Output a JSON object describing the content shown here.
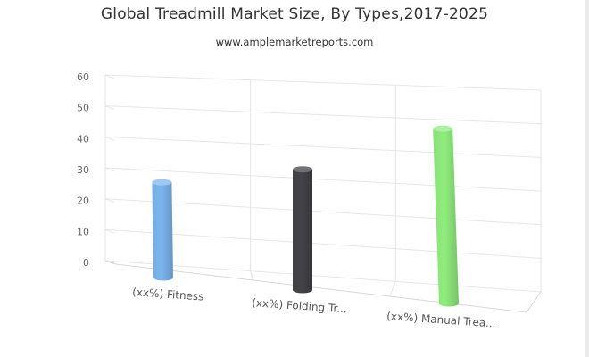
{
  "chart_data": {
    "type": "bar",
    "title": "Global Treadmill Market Size, By Types,2017-2025",
    "subtitle": "www.amplemarketreports.com",
    "categories": [
      "(xx%) Fitness",
      "(xx%) Folding Tr...",
      "(xx%) Manual Trea..."
    ],
    "values": [
      30,
      38,
      55
    ],
    "colors": [
      "#7cb5ec",
      "#434348",
      "#90ed7d"
    ],
    "ylim": [
      0,
      60
    ],
    "yticks": [
      "0",
      "10",
      "20",
      "30",
      "40",
      "50",
      "60"
    ],
    "xlabel": "",
    "ylabel": "",
    "grid": true,
    "legend": "none",
    "style": "3d-cylinder"
  }
}
